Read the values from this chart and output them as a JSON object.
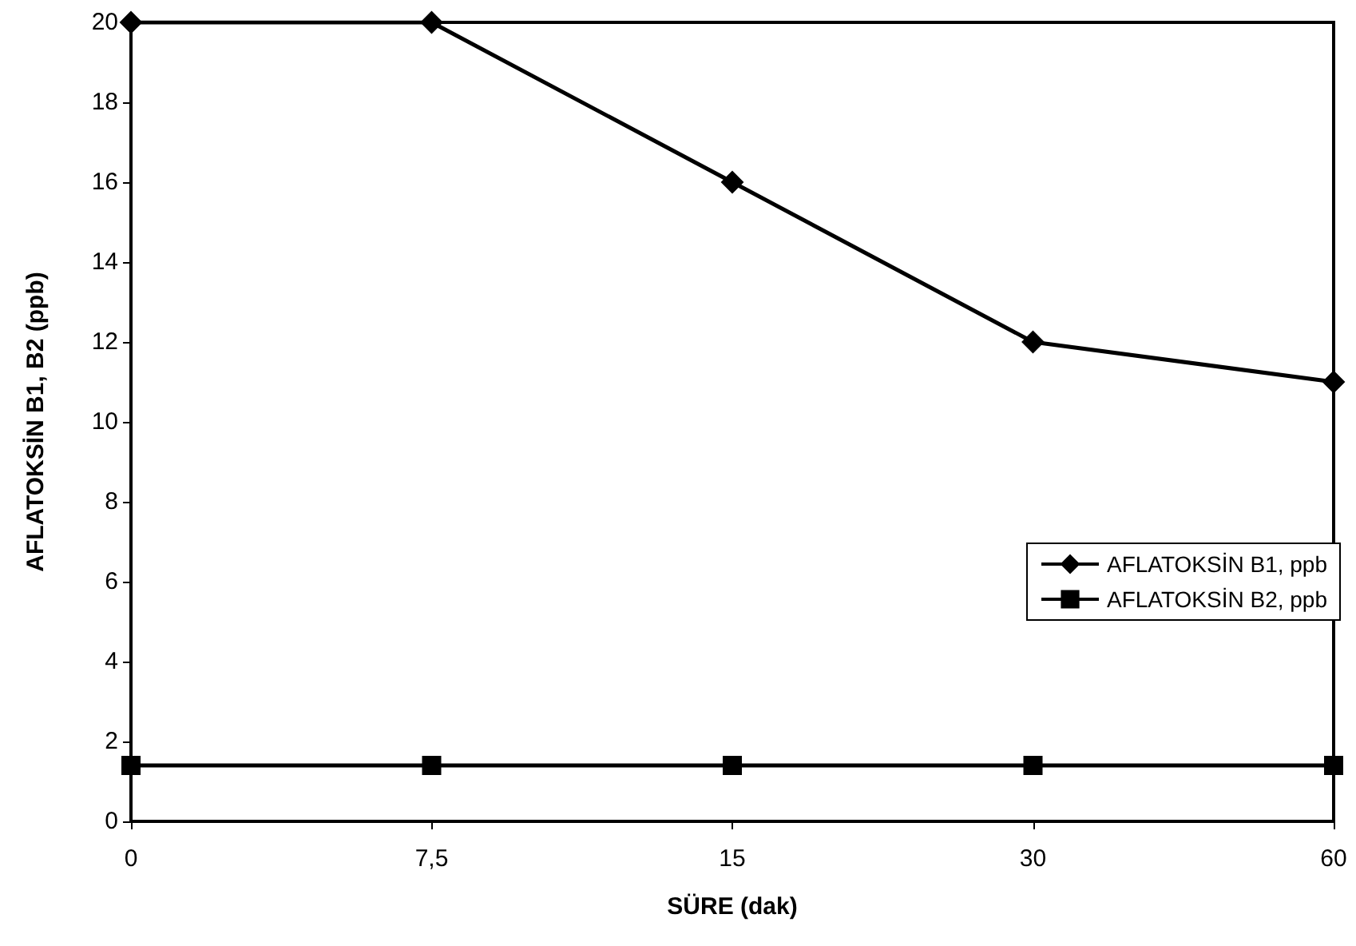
{
  "chart_data": {
    "type": "line",
    "xlabel": "SÜRE (dak)",
    "ylabel": "AFLATOKSİN B1, B2 (ppb)",
    "categories": [
      "0",
      "7,5",
      "15",
      "30",
      "60"
    ],
    "series": [
      {
        "name": "AFLATOKSİN B1, ppb",
        "color": "#000000",
        "marker": "diamond",
        "values": [
          20,
          20,
          16,
          12,
          11
        ]
      },
      {
        "name": "AFLATOKSİN B2, ppb",
        "color": "#000000",
        "marker": "square",
        "values": [
          1.4,
          1.4,
          1.4,
          1.4,
          1.4
        ]
      }
    ],
    "ylim": [
      0,
      20
    ],
    "yticks": [
      0,
      2,
      4,
      6,
      8,
      10,
      12,
      14,
      16,
      18,
      20
    ],
    "grid": false,
    "legend": "right",
    "line_style": "solid"
  }
}
